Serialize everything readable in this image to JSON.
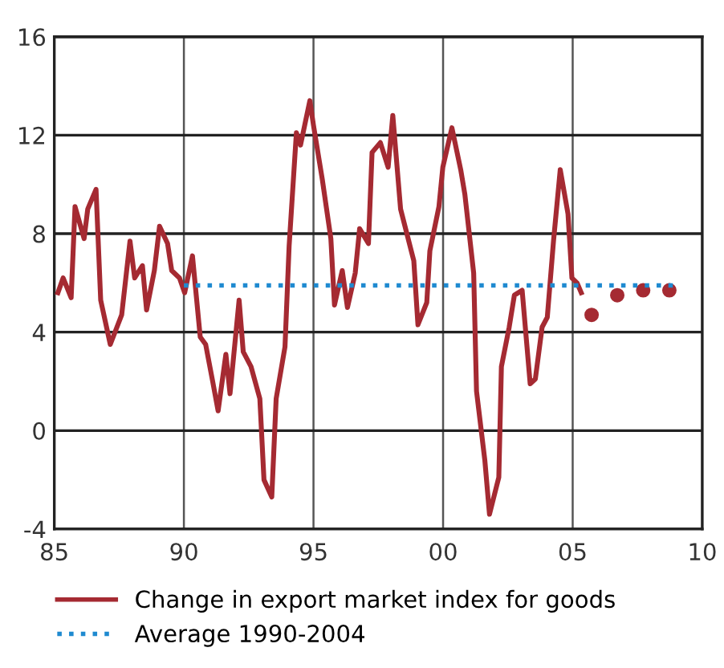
{
  "chart_data": {
    "type": "line",
    "xlim": [
      1985,
      2010
    ],
    "ylim": [
      -4,
      16
    ],
    "xticks": [
      {
        "value": 1985,
        "label": "85"
      },
      {
        "value": 1990,
        "label": "90"
      },
      {
        "value": 1995,
        "label": "95"
      },
      {
        "value": 2000,
        "label": "00"
      },
      {
        "value": 2005,
        "label": "05"
      },
      {
        "value": 2010,
        "label": "10"
      }
    ],
    "yticks": [
      -4,
      0,
      4,
      8,
      12,
      16
    ],
    "grid": true,
    "legend": "bottom",
    "series": [
      {
        "name": "Change in export market index for goods",
        "color": "#a52a32",
        "line_style": "solid",
        "marker": "none",
        "x": [
          1985.14,
          1985.34,
          1985.65,
          1985.8,
          1986.15,
          1986.29,
          1986.61,
          1986.79,
          1987.16,
          1987.6,
          1987.92,
          1988.1,
          1988.4,
          1988.56,
          1988.86,
          1989.06,
          1989.37,
          1989.53,
          1989.83,
          1990.03,
          1990.33,
          1990.63,
          1990.84,
          1991.11,
          1991.32,
          1991.62,
          1991.78,
          1992.13,
          1992.29,
          1992.59,
          1992.93,
          1993.09,
          1993.39,
          1993.56,
          1993.9,
          1994.06,
          1994.34,
          1994.5,
          1994.86,
          1995.0,
          1995.34,
          1995.67,
          1995.81,
          1996.11,
          1996.31,
          1996.61,
          1996.78,
          1997.12,
          1997.26,
          1997.58,
          1997.88,
          1998.06,
          1998.36,
          1998.87,
          1999.03,
          1999.37,
          1999.49,
          1999.84,
          1999.99,
          2000.34,
          2000.68,
          2000.84,
          2001.18,
          2001.29,
          2001.61,
          2001.79,
          2002.15,
          2002.25,
          2002.55,
          2002.75,
          2003.05,
          2003.36,
          2003.56,
          2003.82,
          2004.02,
          2004.26,
          2004.52,
          2004.82,
          2004.97,
          2005.17,
          2005.33
        ],
        "values": [
          5.6,
          6.2,
          5.4,
          9.1,
          7.8,
          9.0,
          9.8,
          5.3,
          3.5,
          4.7,
          7.7,
          6.2,
          6.7,
          4.9,
          6.5,
          8.3,
          7.6,
          6.5,
          6.2,
          5.6,
          7.1,
          3.8,
          3.5,
          2.0,
          0.8,
          3.1,
          1.5,
          5.3,
          3.2,
          2.6,
          1.3,
          -2.0,
          -2.7,
          1.3,
          3.4,
          7.5,
          12.1,
          11.6,
          13.4,
          12.4,
          10.2,
          7.8,
          5.1,
          6.5,
          5.0,
          6.4,
          8.2,
          7.6,
          11.3,
          11.7,
          10.7,
          12.8,
          9.0,
          6.9,
          4.3,
          5.2,
          7.3,
          9.1,
          10.7,
          12.3,
          10.6,
          9.6,
          6.4,
          1.6,
          -1.2,
          -3.4,
          -1.9,
          2.6,
          4.2,
          5.5,
          5.7,
          1.9,
          2.1,
          4.2,
          4.6,
          7.7,
          10.6,
          8.8,
          6.2,
          6.0,
          5.6
        ]
      },
      {
        "type": "scatter",
        "color": "#a52a32",
        "marker": "circle",
        "x": [
          2005.73,
          2006.72,
          2007.72,
          2008.73
        ],
        "values": [
          4.7,
          5.5,
          5.7,
          5.7
        ]
      },
      {
        "name": "Average 1990-2004",
        "color": "#1f8ad0",
        "line_style": "dotted",
        "marker": "none",
        "x": [
          1990.0,
          2008.9
        ],
        "values": [
          5.9,
          5.9
        ]
      }
    ]
  }
}
